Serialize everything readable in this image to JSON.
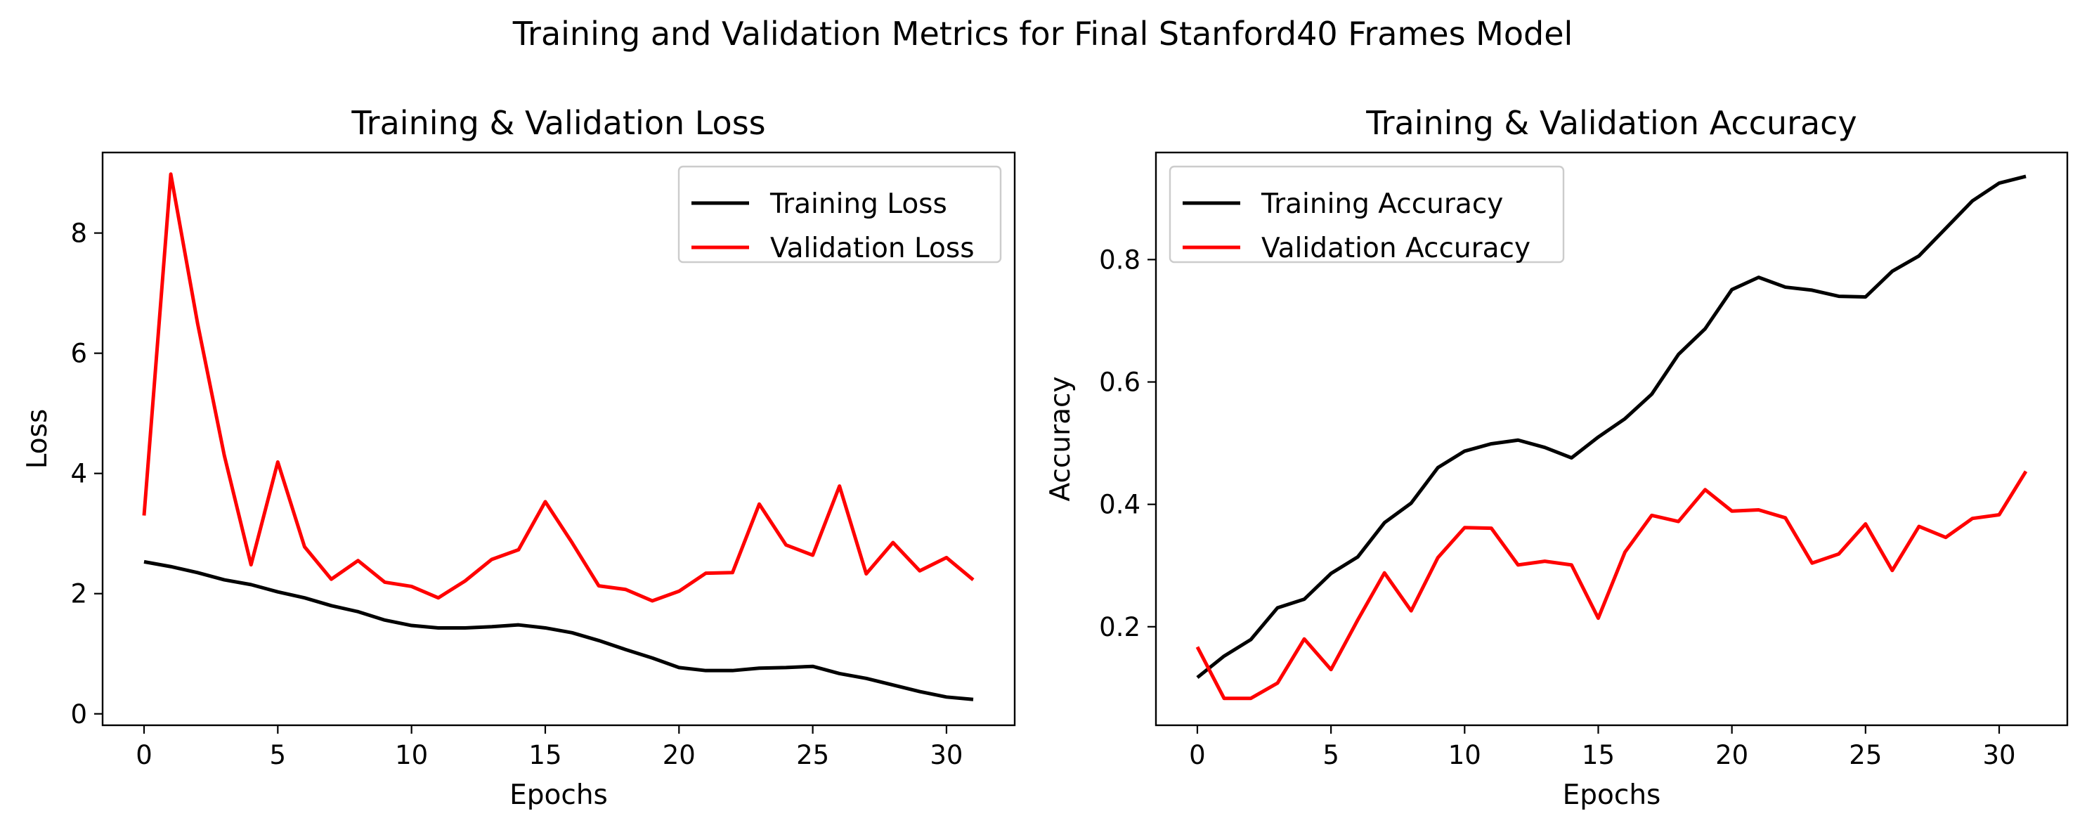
{
  "figure_title": "Training and Validation Metrics for Final Stanford40 Frames Model",
  "chart_data": [
    {
      "type": "line",
      "title": "Training & Validation Loss",
      "xlabel": "Epochs",
      "ylabel": "Loss",
      "xlim": [
        -1.55,
        32.55
      ],
      "ylim": [
        -0.19,
        9.34
      ],
      "xticks": [
        0,
        5,
        10,
        15,
        20,
        25,
        30
      ],
      "yticks": [
        0,
        2,
        4,
        6,
        8
      ],
      "legend_position": "upper right",
      "x": [
        0,
        1,
        2,
        3,
        4,
        5,
        6,
        7,
        8,
        9,
        10,
        11,
        12,
        13,
        14,
        15,
        16,
        17,
        18,
        19,
        20,
        21,
        22,
        23,
        24,
        25,
        26,
        27,
        28,
        29,
        30,
        31
      ],
      "series": [
        {
          "name": "Training Loss",
          "color": "#000000",
          "values": [
            2.53,
            2.45,
            2.35,
            2.23,
            2.15,
            2.03,
            1.93,
            1.8,
            1.7,
            1.56,
            1.47,
            1.43,
            1.43,
            1.45,
            1.48,
            1.43,
            1.35,
            1.22,
            1.07,
            0.93,
            0.77,
            0.72,
            0.72,
            0.76,
            0.77,
            0.79,
            0.67,
            0.59,
            0.48,
            0.37,
            0.28,
            0.24
          ]
        },
        {
          "name": "Validation Loss",
          "color": "#ff0000",
          "values": [
            3.3,
            8.98,
            6.5,
            4.3,
            2.48,
            4.19,
            2.78,
            2.24,
            2.55,
            2.19,
            2.12,
            1.93,
            2.21,
            2.57,
            2.73,
            3.53,
            2.85,
            2.13,
            2.07,
            1.88,
            2.04,
            2.34,
            2.35,
            3.49,
            2.81,
            2.64,
            3.79,
            2.33,
            2.85,
            2.38,
            2.6,
            2.23
          ]
        }
      ]
    },
    {
      "type": "line",
      "title": "Training & Validation Accuracy",
      "xlabel": "Epochs",
      "ylabel": "Accuracy",
      "xlim": [
        -1.55,
        32.55
      ],
      "ylim": [
        0.039,
        0.975
      ],
      "xticks": [
        0,
        5,
        10,
        15,
        20,
        25,
        30
      ],
      "yticks": [
        0.2,
        0.4,
        0.6,
        0.8
      ],
      "legend_position": "upper left",
      "x": [
        0,
        1,
        2,
        3,
        4,
        5,
        6,
        7,
        8,
        9,
        10,
        11,
        12,
        13,
        14,
        15,
        16,
        17,
        18,
        19,
        20,
        21,
        22,
        23,
        24,
        25,
        26,
        27,
        28,
        29,
        30,
        31
      ],
      "series": [
        {
          "name": "Training Accuracy",
          "color": "#000000",
          "values": [
            0.117,
            0.152,
            0.179,
            0.231,
            0.245,
            0.287,
            0.314,
            0.37,
            0.402,
            0.46,
            0.487,
            0.499,
            0.505,
            0.493,
            0.476,
            0.51,
            0.54,
            0.58,
            0.645,
            0.687,
            0.751,
            0.771,
            0.755,
            0.75,
            0.74,
            0.739,
            0.781,
            0.806,
            0.851,
            0.896,
            0.925,
            0.936
          ]
        },
        {
          "name": "Validation Accuracy",
          "color": "#ff0000",
          "values": [
            0.167,
            0.083,
            0.083,
            0.108,
            0.18,
            0.13,
            0.211,
            0.288,
            0.226,
            0.313,
            0.362,
            0.361,
            0.301,
            0.307,
            0.301,
            0.214,
            0.322,
            0.382,
            0.372,
            0.424,
            0.389,
            0.391,
            0.378,
            0.304,
            0.319,
            0.368,
            0.292,
            0.364,
            0.346,
            0.377,
            0.383,
            0.454
          ]
        }
      ]
    }
  ]
}
